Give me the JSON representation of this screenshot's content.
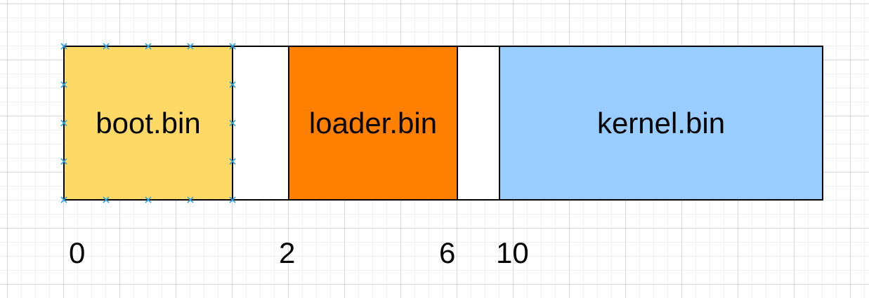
{
  "diagram": {
    "segments": [
      {
        "id": "boot",
        "label": "boot.bin",
        "color": "#FFD966",
        "selected": true
      },
      {
        "id": "gap1",
        "label": "",
        "color": "#FFFFFF",
        "selected": false
      },
      {
        "id": "loader",
        "label": "loader.bin",
        "color": "#FF8000",
        "selected": false
      },
      {
        "id": "gap2",
        "label": "",
        "color": "#FFFFFF",
        "selected": false
      },
      {
        "id": "kernel",
        "label": "kernel.bin",
        "color": "#99CCFF",
        "selected": false
      }
    ],
    "offsets": [
      "0",
      "2",
      "6",
      "10"
    ],
    "selection_handle_color": "#29A3E6"
  }
}
